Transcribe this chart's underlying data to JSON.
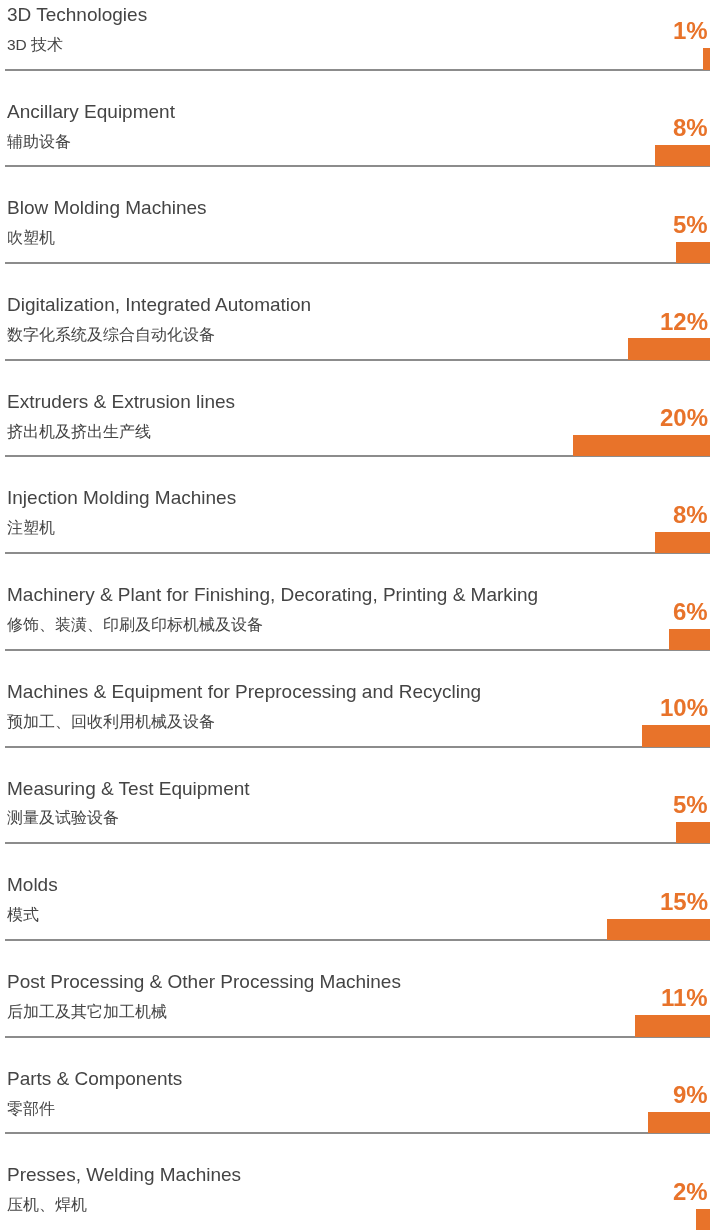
{
  "chart_data": {
    "type": "bar",
    "orientation": "horizontal",
    "grid": "y",
    "legend": false,
    "categories": [
      "3D Technologies\n3D 技术",
      "Ancillary Equipment\n辅助设备",
      "Blow Molding Machines\n吹塑机",
      "Digitalization, Integrated Automation\n数字化系统及综合自动化设备",
      "Extruders & Extrusion lines\n挤出机及挤出生产线",
      "Injection Molding Machines\n注塑机",
      "Machinery & Plant for Finishing, Decorating, Printing & Marking\n修饰、装潢、印刷及印标机械及设备",
      "Machines & Equipment for Preprocessing and Recycling\n预加工、回收利用机械及设备",
      "Measuring & Test Equipment\n测量及试验设备",
      "Molds\n模式",
      "Post Processing & Other Processing Machines\n后加工及其它加工机械",
      "Parts & Components\n零部件",
      "Presses, Welding Machines\n压机、焊机"
    ],
    "values": [
      1,
      8,
      5,
      12,
      20,
      8,
      6,
      10,
      5,
      15,
      11,
      9,
      2
    ],
    "value_labels": [
      "1%",
      "8%",
      "5%",
      "12%",
      "20%",
      "8%",
      "6%",
      "10%",
      "5%",
      "15%",
      "11%",
      "9%",
      "2%"
    ],
    "color": "#e8732a"
  }
}
